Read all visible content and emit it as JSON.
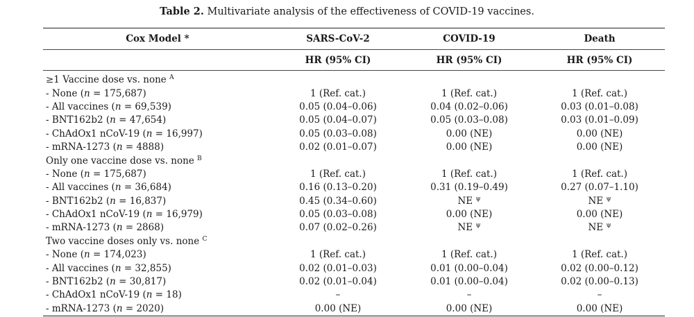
{
  "caption": {
    "label": "Table 2.",
    "text": "Multivariate analysis of the effectiveness of COVID-19 vaccines."
  },
  "header": {
    "col1": "Cox Model *",
    "col2": "SARS-CoV-2",
    "col3": "COVID-19",
    "col4": "Death",
    "sub": "HR (95% CI)"
  },
  "sections": [
    {
      "title": "≥1 Vaccine dose vs. none",
      "sup": "A",
      "rows": [
        {
          "name": "- None (",
          "n": "n",
          "count": " = 175,687)",
          "v1": "1 (Ref. cat.)",
          "v2": "1 (Ref. cat.)",
          "v3": "1 (Ref. cat.)"
        },
        {
          "name": "- All vaccines (",
          "n": "n",
          "count": " = 69,539)",
          "v1": "0.05 (0.04–0.06)",
          "v2": "0.04 (0.02–0.06)",
          "v3": "0.03 (0.01–0.08)"
        },
        {
          "name": "- BNT162b2 (",
          "n": "n",
          "count": " = 47,654)",
          "v1": "0.05 (0.04–0.07)",
          "v2": "0.05 (0.03–0.08)",
          "v3": "0.03 (0.01–0.09)"
        },
        {
          "name": "- ChAdOx1 nCoV-19 (",
          "n": "n",
          "count": " = 16,997)",
          "v1": "0.05 (0.03–0.08)",
          "v2": "0.00 (NE)",
          "v3": "0.00 (NE)"
        },
        {
          "name": "- mRNA-1273 (",
          "n": "n",
          "count": " = 4888)",
          "v1": "0.02 (0.01–0.07)",
          "v2": "0.00 (NE)",
          "v3": "0.00 (NE)"
        }
      ]
    },
    {
      "title": "Only one vaccine dose vs. none",
      "sup": "B",
      "rows": [
        {
          "name": "- None (",
          "n": "n",
          "count": " = 175,687)",
          "v1": "1 (Ref. cat.)",
          "v2": "1 (Ref. cat.)",
          "v3": "1 (Ref. cat.)"
        },
        {
          "name": "- All vaccines (",
          "n": "n",
          "count": " = 36,684)",
          "v1": "0.16 (0.13–0.20)",
          "v2": "0.31 (0.19–0.49)",
          "v3": "0.27 (0.07–1.10)"
        },
        {
          "name": "- BNT162b2 (",
          "n": "n",
          "count": " = 16,837)",
          "v1": "0.45 (0.34–0.60)",
          "v2": "NE ψ",
          "v3": "NE ψ"
        },
        {
          "name": "- ChAdOx1 nCoV-19 (",
          "n": "n",
          "count": " = 16,979)",
          "v1": "0.05 (0.03–0.08)",
          "v2": "0.00 (NE)",
          "v3": "0.00 (NE)"
        },
        {
          "name": "- mRNA-1273 (",
          "n": "n",
          "count": " = 2868)",
          "v1": "0.07 (0.02–0.26)",
          "v2": "NE ψ",
          "v3": "NE ψ"
        }
      ]
    },
    {
      "title": "Two vaccine doses only vs. none",
      "sup": "C",
      "rows": [
        {
          "name": "- None (",
          "n": "n",
          "count": " = 174,023)",
          "v1": "1 (Ref. cat.)",
          "v2": "1 (Ref. cat.)",
          "v3": "1 (Ref. cat.)"
        },
        {
          "name": "- All vaccines (",
          "n": "n",
          "count": " = 32,855)",
          "v1": "0.02 (0.01–0.03)",
          "v2": "0.01 (0.00–0.04)",
          "v3": "0.02 (0.00–0.12)"
        },
        {
          "name": "- BNT162b2 (",
          "n": "n",
          "count": " = 30,817)",
          "v1": "0.02 (0.01–0.04)",
          "v2": "0.01 (0.00–0.04)",
          "v3": "0.02 (0.00–0.13)"
        },
        {
          "name": "- ChAdOx1 nCoV-19 (",
          "n": "n",
          "count": " = 18)",
          "v1": "–",
          "v2": "–",
          "v3": "–"
        },
        {
          "name": "- mRNA-1273 (",
          "n": "n",
          "count": " = 2020)",
          "v1": "0.00 (NE)",
          "v2": "0.00 (NE)",
          "v3": "0.00 (NE)"
        }
      ]
    }
  ]
}
